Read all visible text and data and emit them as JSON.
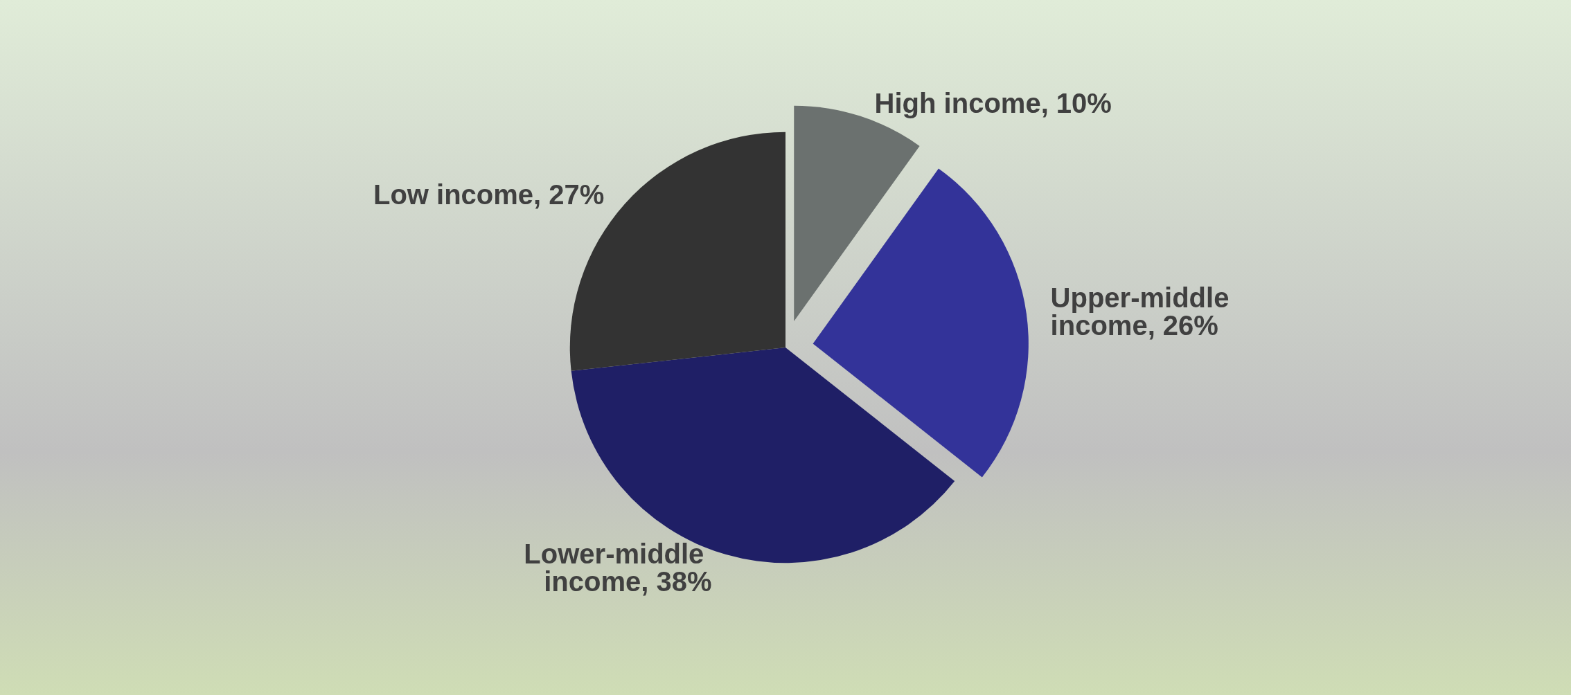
{
  "chart_data": {
    "type": "pie",
    "categories": [
      "High income",
      "Upper-middle income",
      "Lower-middle income",
      "Low income"
    ],
    "values": [
      10,
      26,
      38,
      27
    ],
    "value_labels": [
      "10%",
      "26%",
      "38%",
      "27%"
    ],
    "colors": [
      "#6b716f",
      "#333399",
      "#1f1f66",
      "#333333"
    ]
  }
}
